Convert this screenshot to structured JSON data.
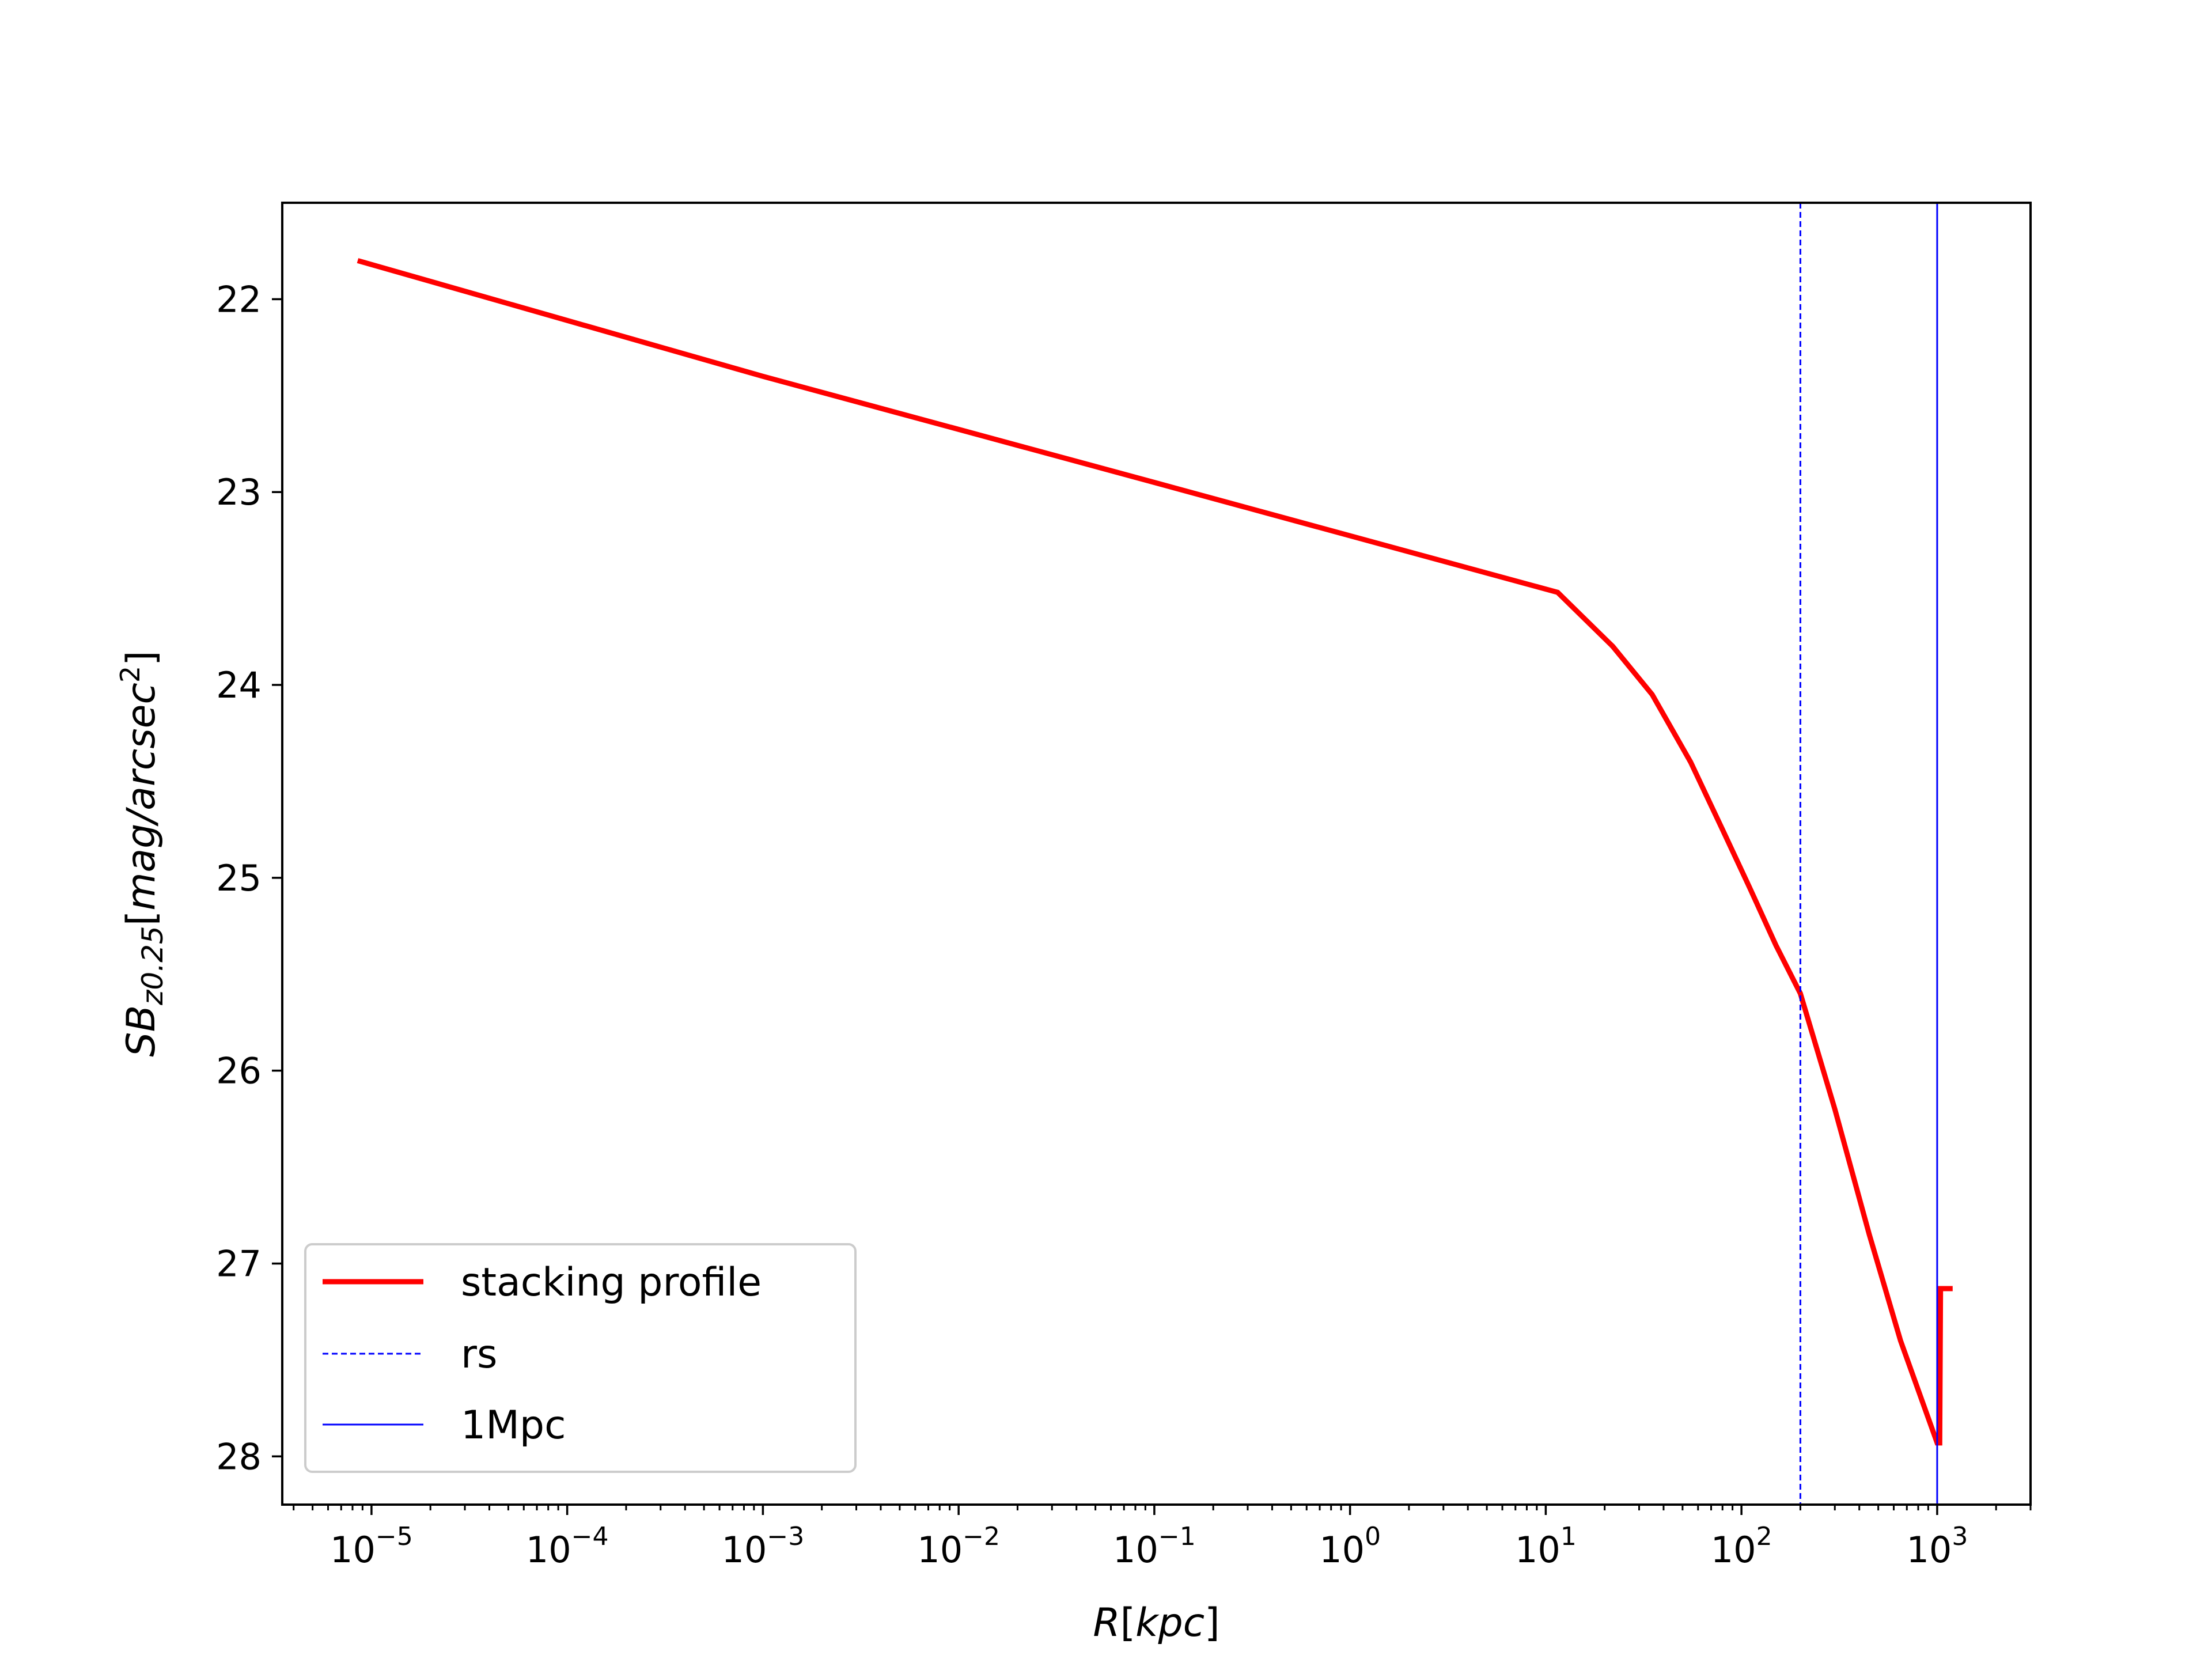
{
  "chart_data": {
    "type": "line",
    "x_scale": "log",
    "y_inverted": true,
    "xlim": [
      3.5e-06,
      3000
    ],
    "ylim": [
      28.25,
      21.5
    ],
    "xlabel": "R[kpc]",
    "ylabel": "SB_{z0.25}[mag/arcsec^2]",
    "ylabel_parts": {
      "base": "SB",
      "sub": "z0.25",
      "bracket_open": "[",
      "unit": "mag/arcsec",
      "sup": "2",
      "bracket_close": "]"
    },
    "xlabel_parts": {
      "var": "R",
      "bracket_open": "[",
      "unit": "kpc",
      "bracket_close": "]"
    },
    "x_ticks": [
      {
        "value": 1e-05,
        "base": "10",
        "exp": "−5"
      },
      {
        "value": 0.0001,
        "base": "10",
        "exp": "−4"
      },
      {
        "value": 0.001,
        "base": "10",
        "exp": "−3"
      },
      {
        "value": 0.01,
        "base": "10",
        "exp": "−2"
      },
      {
        "value": 0.1,
        "base": "10",
        "exp": "−1"
      },
      {
        "value": 1,
        "base": "10",
        "exp": "0"
      },
      {
        "value": 10,
        "base": "10",
        "exp": "1"
      },
      {
        "value": 100,
        "base": "10",
        "exp": "2"
      },
      {
        "value": 1000,
        "base": "10",
        "exp": "3"
      }
    ],
    "y_ticks": [
      22,
      23,
      24,
      25,
      26,
      27,
      28
    ],
    "legend_position": "lower left",
    "series": [
      {
        "name": "stacking profile",
        "color": "#ff0000",
        "style": "solid",
        "points": [
          [
            8.5e-06,
            21.8
          ],
          [
            0.001,
            22.4
          ],
          [
            0.1,
            22.95
          ],
          [
            11.5,
            23.52
          ],
          [
            22,
            23.8
          ],
          [
            35,
            24.05
          ],
          [
            55,
            24.4
          ],
          [
            80,
            24.75
          ],
          [
            110,
            25.05
          ],
          [
            150,
            25.35
          ],
          [
            200,
            25.6
          ],
          [
            300,
            26.2
          ],
          [
            450,
            26.85
          ],
          [
            650,
            27.4
          ],
          [
            1000,
            27.93
          ],
          [
            1030,
            27.93
          ],
          [
            1040,
            27.13
          ],
          [
            1200,
            27.13
          ]
        ]
      },
      {
        "name": "rs",
        "color": "#0000ff",
        "style": "dashed",
        "vline_x": 200
      },
      {
        "name": "1Mpc",
        "color": "#0000ff",
        "style": "solid-thin",
        "vline_x": 1000
      }
    ]
  }
}
